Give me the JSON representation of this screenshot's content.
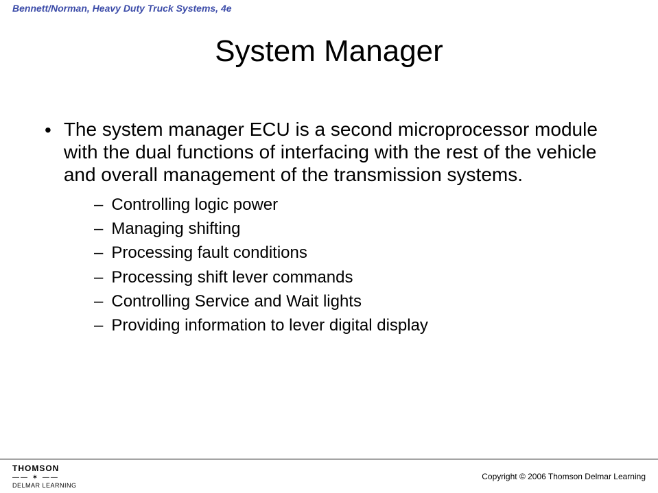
{
  "header": {
    "book_title": "Bennett/Norman, Heavy Duty Truck Systems, 4e",
    "color": "#3b4ba8"
  },
  "slide": {
    "title": "System Manager",
    "title_fontsize": 44,
    "main_bullet": "The system manager ECU is a second microprocessor module with the dual functions of interfacing with the rest of the vehicle and overall management of the transmission systems.",
    "main_fontsize": 28,
    "sub_items": [
      "Controlling logic power",
      "Managing shifting",
      "Processing fault conditions",
      "Processing shift lever commands",
      "Controlling Service and Wait lights",
      "Providing information to lever digital display"
    ],
    "sub_fontsize": 24,
    "background_color": "#ffffff",
    "text_color": "#000000"
  },
  "footer": {
    "brand_top": "THOMSON",
    "brand_bottom": "DELMAR LEARNING",
    "copyright": "Copyright © 2006 Thomson Delmar Learning"
  }
}
